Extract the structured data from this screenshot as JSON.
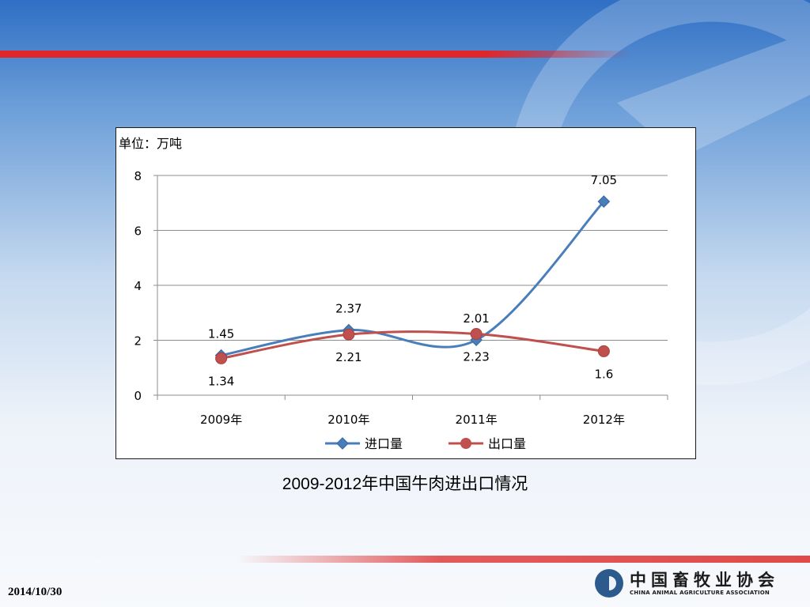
{
  "slide": {
    "caption": "2009-2012年中国牛肉进出口情况",
    "date": "2014/10/30",
    "logo_cn": "中国畜牧业协会",
    "logo_en": "CHINA ANIMAL AGRICULTURE ASSOCIATION",
    "colors": {
      "top_red_bar": "#e0262b",
      "bottom_red_bar": "#e04a4a"
    }
  },
  "chart_data": {
    "type": "line",
    "title": "",
    "unit_label": "单位：万吨",
    "xlabel": "",
    "ylabel": "",
    "categories": [
      "2009年",
      "2010年",
      "2011年",
      "2012年"
    ],
    "ylim": [
      0,
      8
    ],
    "yticks": [
      0,
      2,
      4,
      6,
      8
    ],
    "grid": true,
    "smooth": true,
    "legend_position": "bottom",
    "series": [
      {
        "name": "进口量",
        "values": [
          1.45,
          2.37,
          2.01,
          7.05
        ],
        "labels": [
          "1.45",
          "2.37",
          "2.01",
          "7.05"
        ],
        "color": "#4a7ebb",
        "marker": "diamond",
        "label_position": "above"
      },
      {
        "name": "出口量",
        "values": [
          1.34,
          2.21,
          2.23,
          1.6
        ],
        "labels": [
          "1.34",
          "2.21",
          "2.23",
          "1.6"
        ],
        "color": "#c0504d",
        "marker": "circle",
        "label_position": "below"
      }
    ]
  }
}
